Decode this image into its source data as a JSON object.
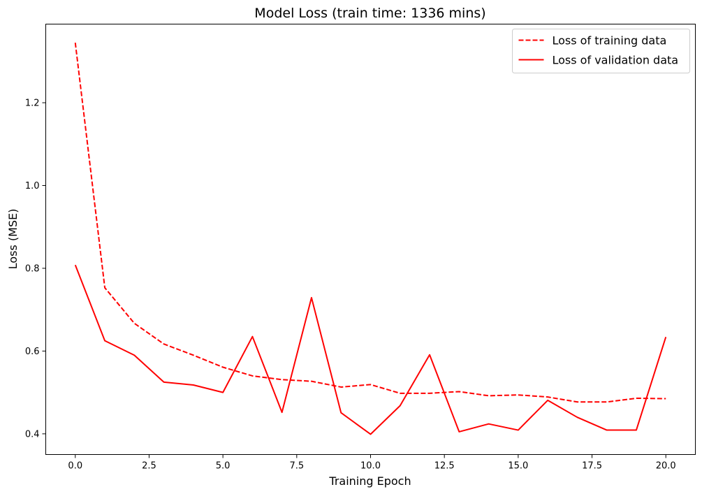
{
  "chart_data": {
    "type": "line",
    "title": "Model Loss (train time: 1336 mins)",
    "xlabel": "Training Epoch",
    "ylabel": "Loss (MSE)",
    "xlim": [
      -1,
      21
    ],
    "ylim": [
      0.35,
      1.39
    ],
    "xticks": [
      0,
      2.5,
      5,
      7.5,
      10,
      12.5,
      15,
      17.5,
      20
    ],
    "xtick_labels": [
      "0.0",
      "2.5",
      "5.0",
      "7.5",
      "10.0",
      "12.5",
      "15.0",
      "17.5",
      "20.0"
    ],
    "yticks": [
      0.4,
      0.6,
      0.8,
      1.0,
      1.2
    ],
    "ytick_labels": [
      "0.4",
      "0.6",
      "0.8",
      "1.0",
      "1.2"
    ],
    "grid": false,
    "legend_position": "top-right",
    "x": [
      0,
      1,
      2,
      3,
      4,
      5,
      6,
      7,
      8,
      9,
      10,
      11,
      12,
      13,
      14,
      15,
      16,
      17,
      18,
      19,
      20
    ],
    "series": [
      {
        "name": "Loss of training data",
        "style": "dashed",
        "color": "#ff0000",
        "values": [
          1.345,
          0.753,
          0.667,
          0.617,
          0.59,
          0.561,
          0.54,
          0.531,
          0.527,
          0.513,
          0.519,
          0.498,
          0.498,
          0.502,
          0.492,
          0.494,
          0.489,
          0.477,
          0.477,
          0.486,
          0.485
        ]
      },
      {
        "name": "Loss of validation data",
        "style": "solid",
        "color": "#ff0000",
        "values": [
          0.808,
          0.625,
          0.59,
          0.525,
          0.518,
          0.5,
          0.635,
          0.452,
          0.729,
          0.451,
          0.399,
          0.468,
          0.591,
          0.405,
          0.424,
          0.409,
          0.481,
          0.44,
          0.409,
          0.409,
          0.634
        ]
      }
    ]
  }
}
